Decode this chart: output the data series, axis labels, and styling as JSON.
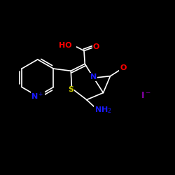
{
  "bg_color": "#000000",
  "atom_colors": {
    "N_plus": "#1a1aff",
    "N": "#1a1aff",
    "O": "#ff0000",
    "S": "#cccc00",
    "I": "#8800aa",
    "bond": "#ffffff"
  },
  "label_fontsize": 8,
  "figsize": [
    2.5,
    2.5
  ],
  "dpi": 100
}
